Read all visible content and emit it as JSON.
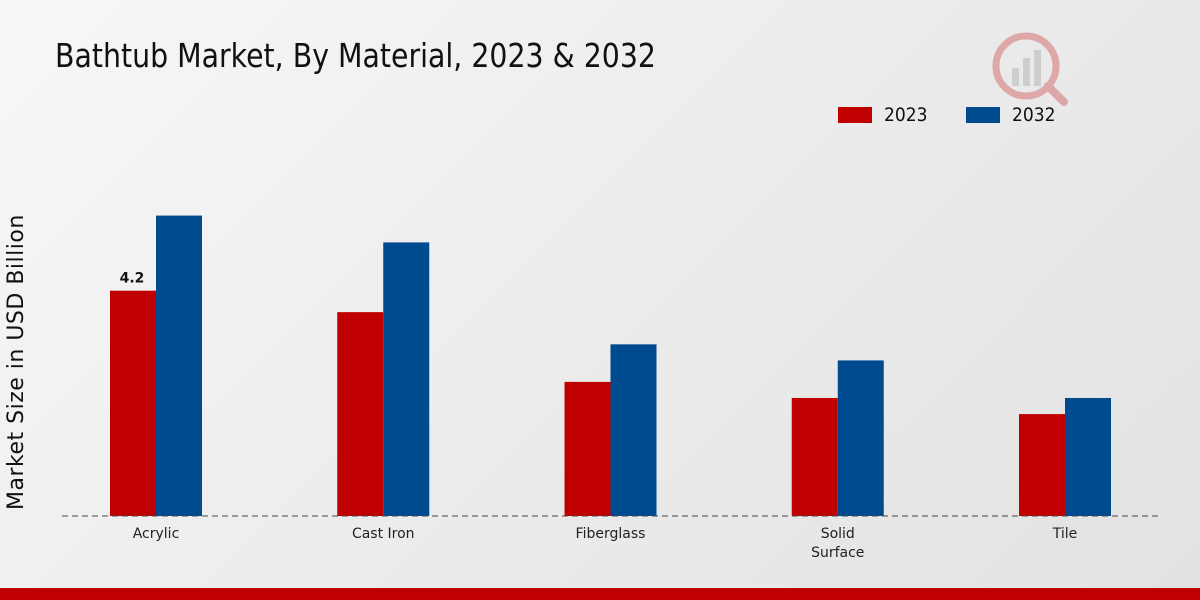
{
  "chart_data": {
    "type": "bar",
    "title": "Bathtub Market, By Material, 2023 & 2032",
    "xlabel": "",
    "ylabel": "Market Size in USD Billion",
    "categories": [
      "Acrylic",
      "Cast Iron",
      "Fiberglass",
      "Solid\nSurface",
      "Tile"
    ],
    "series": [
      {
        "name": "2023",
        "color": "#c00000",
        "values": [
          4.2,
          3.8,
          2.5,
          2.2,
          1.9
        ]
      },
      {
        "name": "2032",
        "color": "#004a8f",
        "values": [
          5.6,
          5.1,
          3.2,
          2.9,
          2.2
        ]
      }
    ],
    "data_labels": [
      {
        "series": 0,
        "category": 0,
        "text": "4.2"
      }
    ],
    "ylim": [
      0,
      8.5
    ],
    "grid": false,
    "legend_position": "top-right"
  },
  "footer_color": "#c00000"
}
